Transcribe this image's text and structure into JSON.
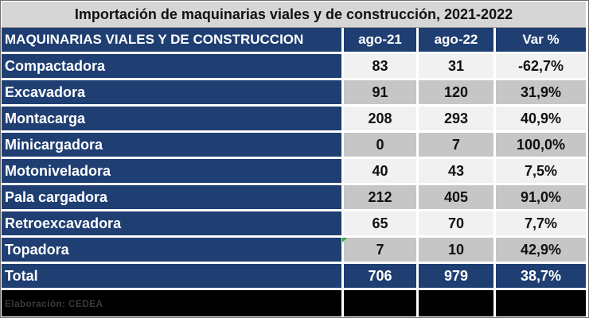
{
  "title": "Importación de maquinarias viales y de construcción, 2021-2022",
  "colors": {
    "header_bg": "#1f3e72",
    "row_light": "#f1f1f1",
    "row_dark": "#c6c6c6",
    "title_bg": "#d6d6d6"
  },
  "chart_data": {
    "type": "table",
    "title": "Importación de maquinarias viales y de construcción, 2021-2022",
    "columns": [
      "MAQUINARIAS VIALES Y DE CONSTRUCCION",
      "ago-21",
      "ago-22",
      "Var %"
    ],
    "rows": [
      {
        "name": "Compactadora",
        "ago21": "83",
        "ago22": "31",
        "var": "-62,7%"
      },
      {
        "name": "Excavadora",
        "ago21": "91",
        "ago22": "120",
        "var": "31,9%"
      },
      {
        "name": "Montacarga",
        "ago21": "208",
        "ago22": "293",
        "var": "40,9%"
      },
      {
        "name": "Minicargadora",
        "ago21": "0",
        "ago22": "7",
        "var": "100,0%"
      },
      {
        "name": "Motoniveladora",
        "ago21": "40",
        "ago22": "43",
        "var": "7,5%"
      },
      {
        "name": "Pala cargadora",
        "ago21": "212",
        "ago22": "405",
        "var": "91,0%"
      },
      {
        "name": "Retroexcavadora",
        "ago21": "65",
        "ago22": "70",
        "var": "7,7%"
      },
      {
        "name": "Topadora",
        "ago21": "7",
        "ago22": "10",
        "var": "42,9%"
      }
    ],
    "total": {
      "name": "Total",
      "ago21": "706",
      "ago22": "979",
      "var": "38,7%"
    },
    "source": "Elaboración: CEDEA"
  }
}
